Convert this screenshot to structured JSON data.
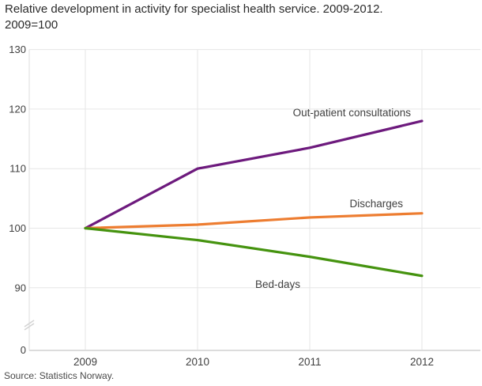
{
  "title_line1": "Relative development in activity for specialist health service. 2009-2012.",
  "title_line2": "2009=100",
  "source": "Source: Statistics Norway.",
  "colors": {
    "grid": "#e6e6e6",
    "axis": "#dcdcdc",
    "break_mark": "#d4d4d4",
    "tick_text": "#404040",
    "label_text": "#404040"
  },
  "chart_data": {
    "type": "line",
    "title": "Relative development in activity for specialist health service. 2009-2012. 2009=100",
    "x": [
      "2009",
      "2010",
      "2011",
      "2012"
    ],
    "series": [
      {
        "name": "Out-patient consultations",
        "color": "#6d1a7d",
        "values": [
          100,
          110,
          113.5,
          118
        ]
      },
      {
        "name": "Discharges",
        "color": "#ed7d31",
        "values": [
          100,
          100.6,
          101.8,
          102.5
        ]
      },
      {
        "name": "Bed-days",
        "color": "#45930f",
        "values": [
          100,
          98,
          95.2,
          92
        ]
      }
    ],
    "yticks": [
      90,
      100,
      110,
      120,
      130
    ],
    "y_zero_label": "0",
    "y_axis_break": true,
    "ylim": [
      90,
      130
    ],
    "xlabel": "",
    "ylabel": "",
    "grid": true,
    "legend_position": "inline-labels"
  }
}
